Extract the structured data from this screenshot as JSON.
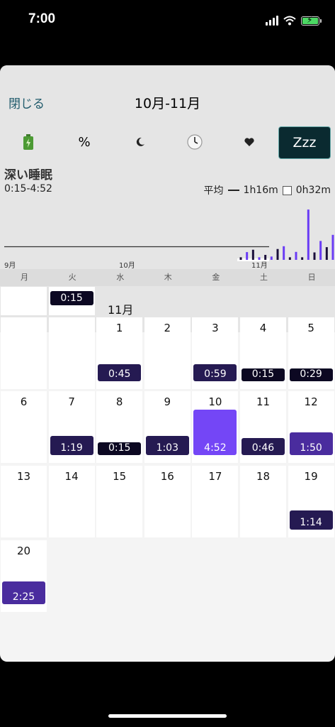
{
  "status": {
    "time": "7:00"
  },
  "header": {
    "close_label": "閉じる",
    "title": "10月-11月"
  },
  "tabs": [
    {
      "icon": "battery-icon",
      "label": ""
    },
    {
      "icon": "percent-icon",
      "label": "%"
    },
    {
      "icon": "moon-icon",
      "label": ""
    },
    {
      "icon": "clock-icon",
      "label": ""
    },
    {
      "icon": "heart-icon",
      "label": ""
    },
    {
      "icon": "zzz-icon",
      "label": "Zzz"
    }
  ],
  "metric": {
    "title": "深い睡眠",
    "range": "0:15-4:52",
    "avg_label": "平均",
    "avg_value": "1h16m",
    "other_value": "0h32m"
  },
  "chart_data": {
    "type": "bar",
    "x_tick_labels": [
      "9月",
      "10月",
      "11月"
    ],
    "values": [
      0.25,
      0.75,
      0.98,
      0.25,
      0.48,
      0.32,
      1.05,
      1.32,
      0.25,
      0.77,
      0.25,
      4.87,
      0.72,
      1.83,
      1.23,
      2.42
    ],
    "average_line": 1.27,
    "colors": {
      "series": "#6a3cf5",
      "dark": "#1b0f3b"
    }
  },
  "weekdays": [
    "月",
    "火",
    "水",
    "木",
    "金",
    "土",
    "日"
  ],
  "calendar": {
    "month_label": "11月",
    "top_row": {
      "value": "0:15"
    },
    "days": [
      {
        "d": "1",
        "v": "0:45"
      },
      {
        "d": "2",
        "v": ""
      },
      {
        "d": "3",
        "v": "0:59"
      },
      {
        "d": "4",
        "v": "0:15"
      },
      {
        "d": "5",
        "v": "0:29"
      },
      {
        "d": "6",
        "v": ""
      },
      {
        "d": "7",
        "v": "1:19"
      },
      {
        "d": "8",
        "v": "0:15"
      },
      {
        "d": "9",
        "v": "1:03"
      },
      {
        "d": "10",
        "v": "4:52"
      },
      {
        "d": "11",
        "v": "0:46"
      },
      {
        "d": "12",
        "v": "1:50"
      },
      {
        "d": "13",
        "v": ""
      },
      {
        "d": "14",
        "v": ""
      },
      {
        "d": "15",
        "v": ""
      },
      {
        "d": "16",
        "v": ""
      },
      {
        "d": "17",
        "v": ""
      },
      {
        "d": "18",
        "v": ""
      },
      {
        "d": "19",
        "v": "1:14"
      },
      {
        "d": "20",
        "v": "2:25"
      }
    ]
  }
}
